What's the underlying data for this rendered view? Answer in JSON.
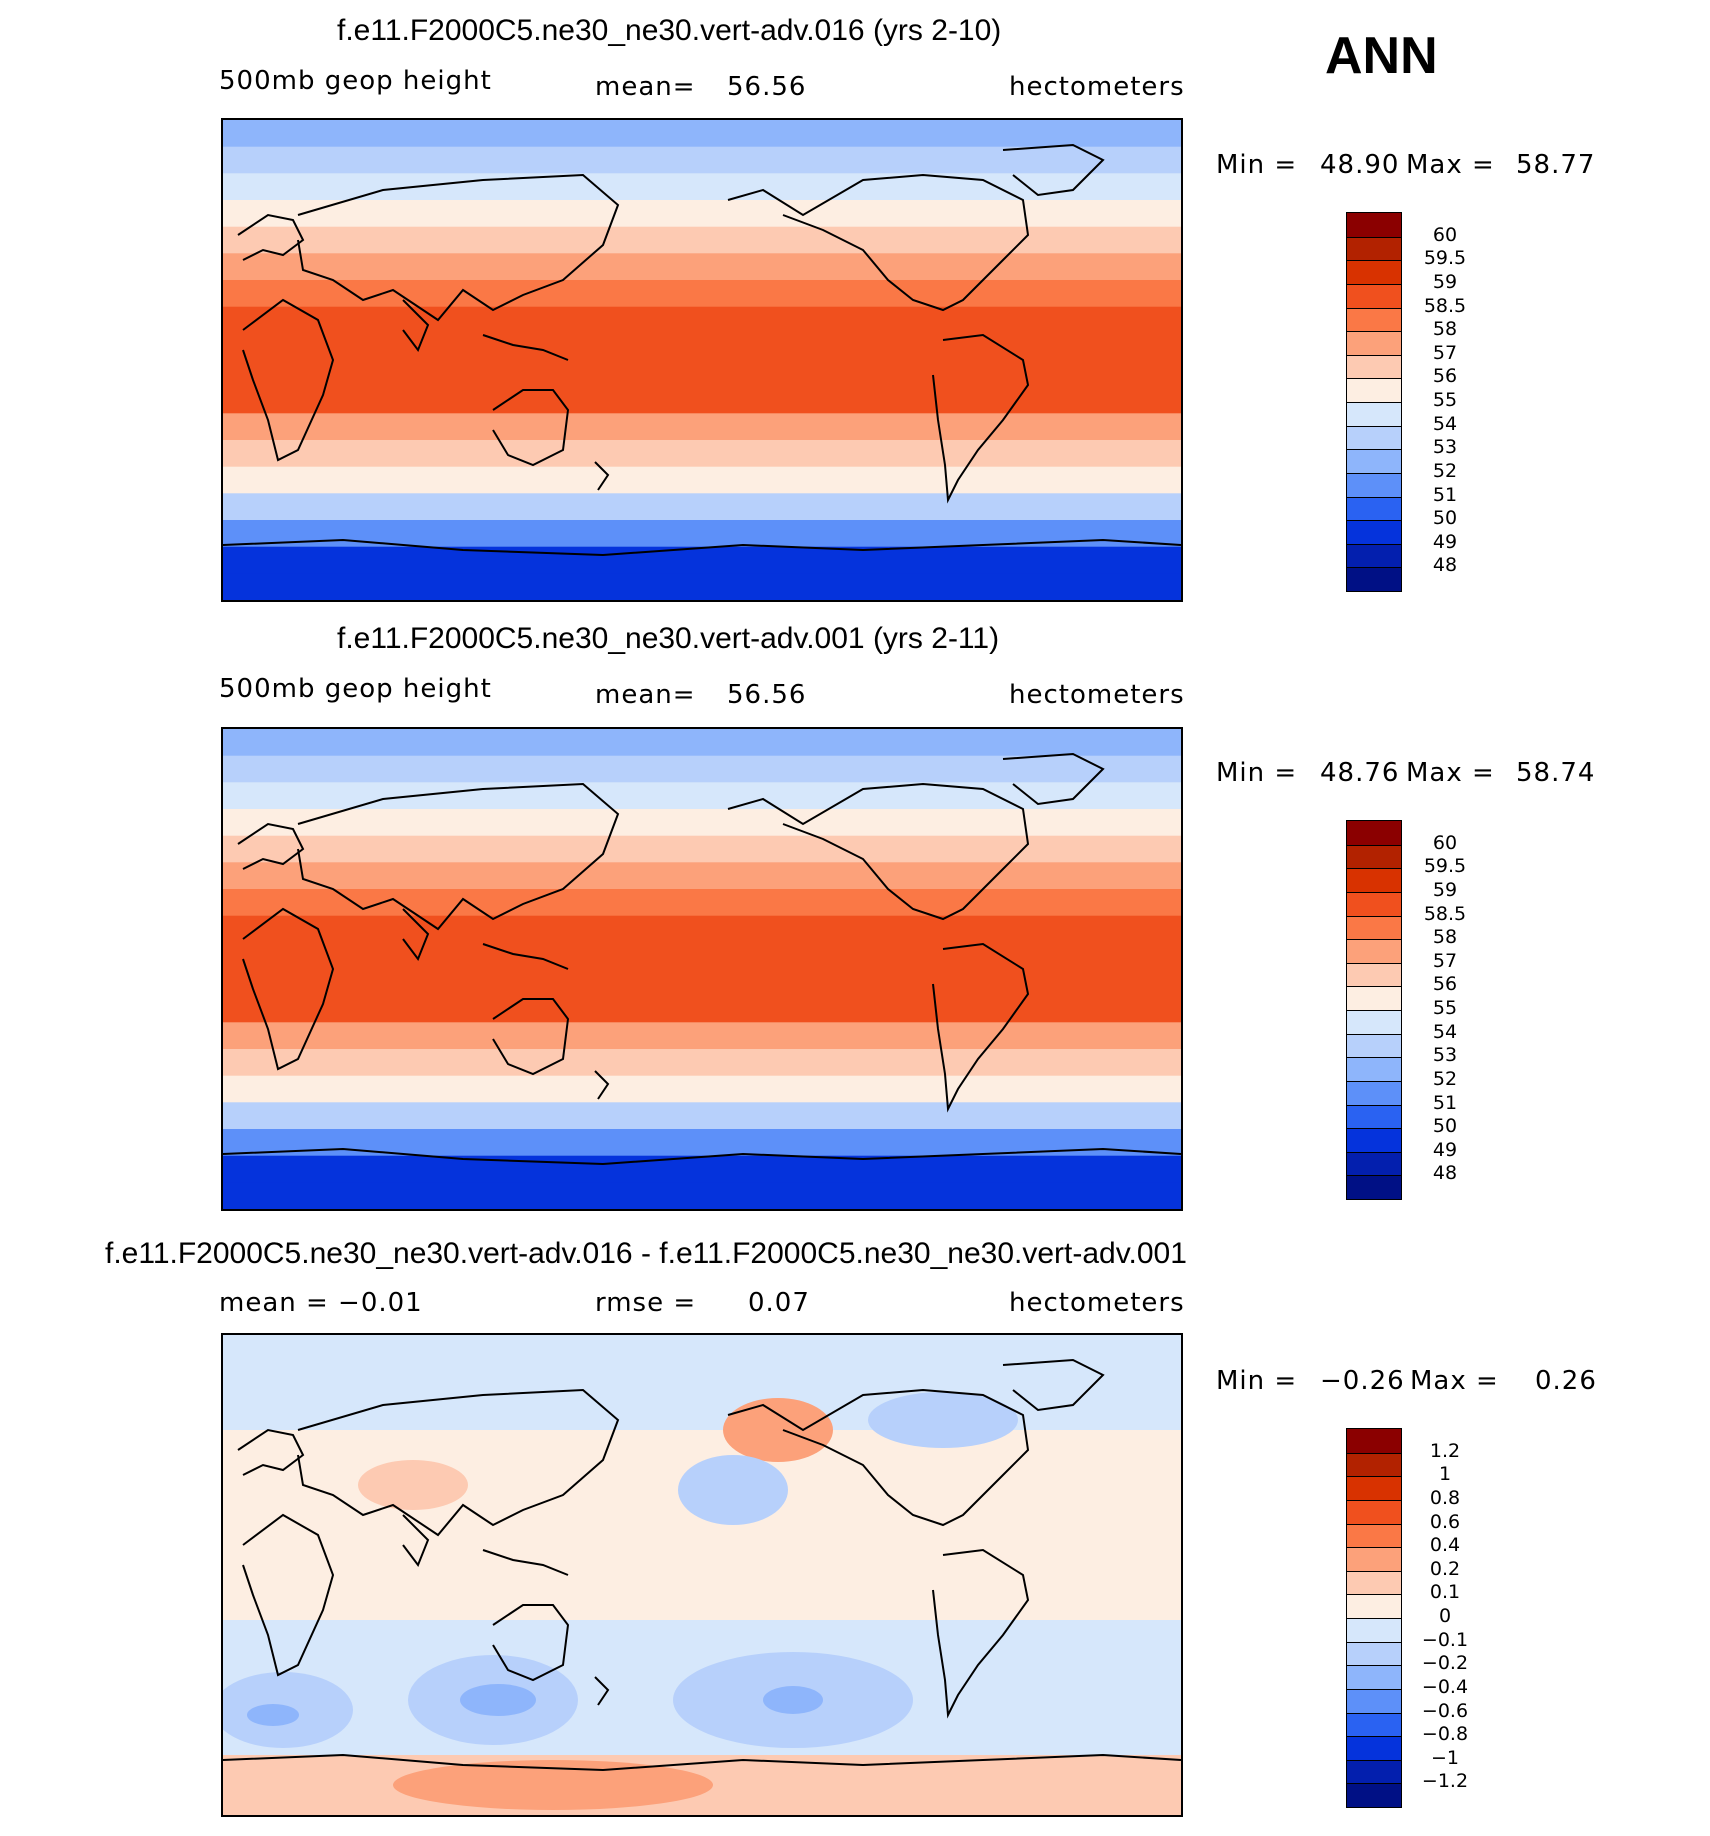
{
  "season_label": "ANN",
  "units_label": "hectometers",
  "chart_data": [
    {
      "type": "heatmap",
      "title": "f.e11.F2000C5.ne30_ne30.vert-adv.016 (yrs 2-10)",
      "subtitle_left": "500mb  geop  height",
      "mean_label": "mean=",
      "mean_value": "56.56",
      "units": "hectometers",
      "min_label": "Min =",
      "min_value": "48.90",
      "max_label": "Max =",
      "max_value": "58.77",
      "colorbar": {
        "labels": [
          "60",
          "59.5",
          "59",
          "58.5",
          "58",
          "57",
          "56",
          "55",
          "54",
          "53",
          "52",
          "51",
          "50",
          "49",
          "48"
        ],
        "colors": [
          "#8b0000",
          "#b22200",
          "#d83200",
          "#f0501e",
          "#fa7846",
          "#fca17a",
          "#fdcab2",
          "#fdeee2",
          "#d6e7fb",
          "#b7d0fb",
          "#8eb5fb",
          "#5d90f9",
          "#2a62f2",
          "#0533dc",
          "#031fae",
          "#001085"
        ]
      },
      "band_values_north_to_south": [
        52.0,
        53.0,
        54.0,
        55.5,
        56.5,
        57.5,
        58.3,
        58.8,
        58.8,
        58.8,
        58.5,
        57.5,
        56.5,
        55.0,
        53.0,
        51.0,
        49.5,
        49.0
      ]
    },
    {
      "type": "heatmap",
      "title": "f.e11.F2000C5.ne30_ne30.vert-adv.001 (yrs 2-11)",
      "subtitle_left": "500mb  geop  height",
      "mean_label": "mean=",
      "mean_value": "56.56",
      "units": "hectometers",
      "min_label": "Min =",
      "min_value": "48.76",
      "max_label": "Max =",
      "max_value": "58.74",
      "colorbar": {
        "labels": [
          "60",
          "59.5",
          "59",
          "58.5",
          "58",
          "57",
          "56",
          "55",
          "54",
          "53",
          "52",
          "51",
          "50",
          "49",
          "48"
        ],
        "colors": [
          "#8b0000",
          "#b22200",
          "#d83200",
          "#f0501e",
          "#fa7846",
          "#fca17a",
          "#fdcab2",
          "#fdeee2",
          "#d6e7fb",
          "#b7d0fb",
          "#8eb5fb",
          "#5d90f9",
          "#2a62f2",
          "#0533dc",
          "#031fae",
          "#001085"
        ]
      },
      "band_values_north_to_south": [
        52.0,
        53.0,
        54.0,
        55.5,
        56.5,
        57.5,
        58.3,
        58.8,
        58.8,
        58.8,
        58.5,
        57.5,
        56.5,
        55.0,
        53.0,
        51.0,
        49.5,
        49.0
      ]
    },
    {
      "type": "heatmap",
      "title": "f.e11.F2000C5.ne30_ne30.vert-adv.016 - f.e11.F2000C5.ne30_ne30.vert-adv.001",
      "subtitle_left": "mean =   −0.01",
      "mean_label": "rmse =",
      "mean_value": "0.07",
      "units": "hectometers",
      "min_label": "Min =",
      "min_value": "−0.26",
      "max_label": "Max =",
      "max_value": "0.26",
      "colorbar": {
        "labels": [
          "1.2",
          "1",
          "0.8",
          "0.6",
          "0.4",
          "0.2",
          "0.1",
          "0",
          "−0.1",
          "−0.2",
          "−0.4",
          "−0.6",
          "−0.8",
          "−1",
          "−1.2"
        ],
        "colors": [
          "#8b0000",
          "#b22200",
          "#d83200",
          "#f0501e",
          "#fa7846",
          "#fca17a",
          "#fdcab2",
          "#fdeee2",
          "#d6e7fb",
          "#b7d0fb",
          "#8eb5fb",
          "#5d90f9",
          "#2a62f2",
          "#0533dc",
          "#031fae",
          "#001085"
        ]
      }
    }
  ]
}
